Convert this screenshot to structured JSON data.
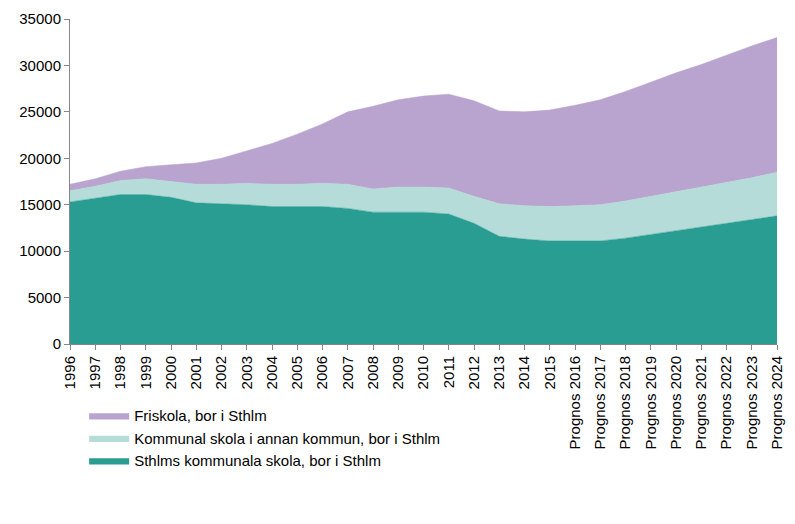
{
  "chart_data": {
    "type": "area",
    "stacked": true,
    "grid": false,
    "legend": "bottom left",
    "categories": [
      "1996",
      "1997",
      "1998",
      "1999",
      "2000",
      "2001",
      "2002",
      "2003",
      "2004",
      "2005",
      "2006",
      "2007",
      "2008",
      "2009",
      "2010",
      "2011",
      "2012",
      "2013",
      "2014",
      "2015",
      "Prognos 2016",
      "Prognos 2017",
      "Prognos 2018",
      "Prognos 2019",
      "Prognos 2020",
      "Prognos 2021",
      "Prognos 2022",
      "Prognos 2023",
      "Prognos 2024"
    ],
    "series": [
      {
        "name": "Sthlms kommunala skola, bor i Sthlm",
        "color": "#2a9d93",
        "values": [
          15300,
          15700,
          16100,
          16100,
          15800,
          15200,
          15100,
          15000,
          14800,
          14800,
          14800,
          14600,
          14200,
          14200,
          14200,
          14000,
          13000,
          11600,
          11300,
          11100,
          11100,
          11100,
          11400,
          11800,
          12200,
          12600,
          13000,
          13400,
          13800
        ]
      },
      {
        "name": "Kommunal skola i annan kommun, bor i Sthlm",
        "color": "#b5dcd8",
        "values": [
          1200,
          1300,
          1500,
          1700,
          1700,
          2000,
          2100,
          2300,
          2400,
          2400,
          2500,
          2600,
          2500,
          2700,
          2700,
          2800,
          2900,
          3500,
          3600,
          3700,
          3800,
          3900,
          4000,
          4100,
          4200,
          4300,
          4400,
          4500,
          4700
        ]
      },
      {
        "name": "Friskola, bor i Sthlm",
        "color": "#b9a3cf",
        "values": [
          700,
          800,
          1000,
          1300,
          1800,
          2300,
          2800,
          3500,
          4400,
          5400,
          6400,
          7800,
          8900,
          9400,
          9800,
          10100,
          10300,
          10000,
          10100,
          10400,
          10800,
          11300,
          11800,
          12300,
          12800,
          13200,
          13700,
          14200,
          14500
        ]
      }
    ],
    "ylim": [
      0,
      35000
    ],
    "yticks": [
      0,
      5000,
      10000,
      15000,
      20000,
      25000,
      30000,
      35000
    ]
  }
}
